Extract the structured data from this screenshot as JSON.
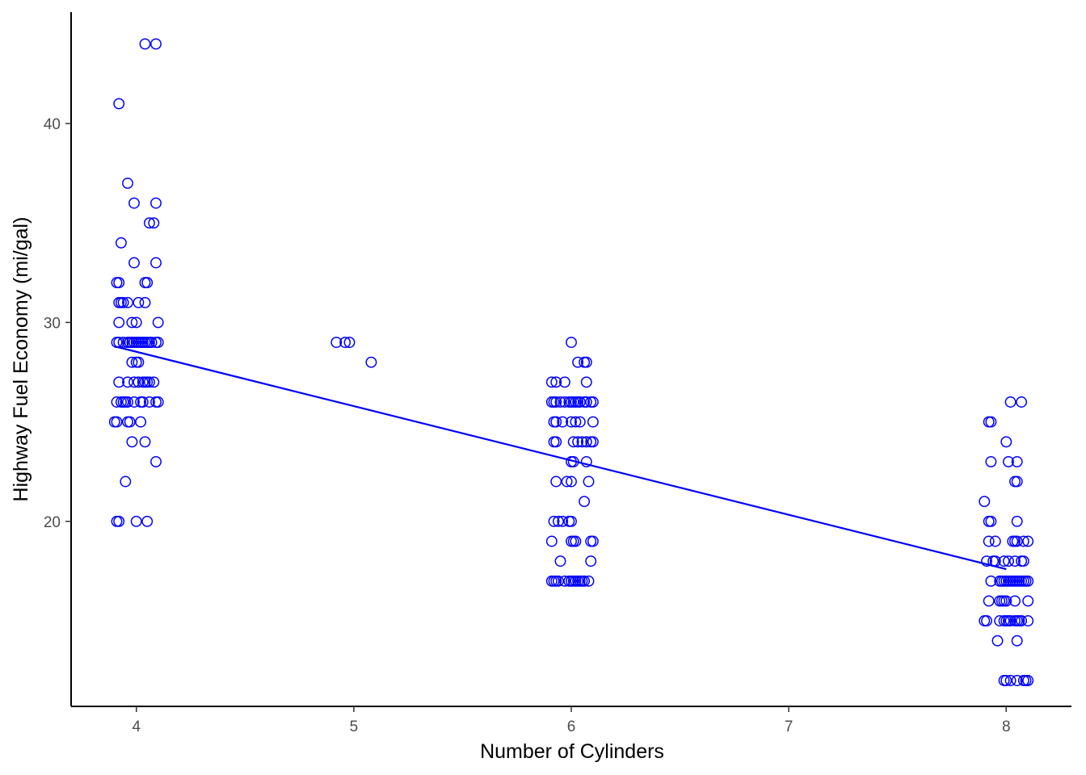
{
  "chart_data": {
    "type": "scatter",
    "xlabel": "Number of Cylinders",
    "ylabel": "Highway Fuel Economy (mi/gal)",
    "xlim": [
      3.7,
      8.3
    ],
    "ylim": [
      10.7,
      45.6
    ],
    "x_ticks": [
      4,
      5,
      6,
      7,
      8
    ],
    "y_ticks": [
      20,
      30,
      40
    ],
    "grid": false,
    "point_color": "#0000FF",
    "line_color": "#0000FF",
    "series": [
      {
        "points": [
          [
            4.09,
            44
          ],
          [
            4.04,
            44
          ],
          [
            3.92,
            41
          ],
          [
            3.96,
            37
          ],
          [
            3.99,
            36
          ],
          [
            4.09,
            36
          ],
          [
            4.06,
            35
          ],
          [
            4.08,
            35
          ],
          [
            3.93,
            34
          ],
          [
            3.99,
            33
          ],
          [
            4.09,
            33
          ],
          [
            3.91,
            32
          ],
          [
            3.92,
            32
          ],
          [
            4.04,
            32
          ],
          [
            4.05,
            32
          ],
          [
            3.92,
            31
          ],
          [
            3.93,
            31
          ],
          [
            3.94,
            31
          ],
          [
            3.96,
            31
          ],
          [
            4.01,
            31
          ],
          [
            4.04,
            31
          ],
          [
            3.92,
            30
          ],
          [
            3.98,
            30
          ],
          [
            4.0,
            30
          ],
          [
            4.1,
            30
          ],
          [
            3.91,
            29
          ],
          [
            3.92,
            29
          ],
          [
            3.94,
            29
          ],
          [
            3.96,
            29
          ],
          [
            3.97,
            29
          ],
          [
            3.98,
            29
          ],
          [
            3.99,
            29
          ],
          [
            4.0,
            29
          ],
          [
            4.01,
            29
          ],
          [
            4.02,
            29
          ],
          [
            4.03,
            29
          ],
          [
            4.04,
            29
          ],
          [
            4.05,
            29
          ],
          [
            4.06,
            29
          ],
          [
            4.07,
            29
          ],
          [
            4.09,
            29
          ],
          [
            4.1,
            29
          ],
          [
            3.98,
            28
          ],
          [
            4.0,
            28
          ],
          [
            4.01,
            28
          ],
          [
            3.92,
            27
          ],
          [
            3.96,
            27
          ],
          [
            3.99,
            27
          ],
          [
            4.01,
            27
          ],
          [
            4.03,
            27
          ],
          [
            4.04,
            27
          ],
          [
            4.05,
            27
          ],
          [
            4.06,
            27
          ],
          [
            4.08,
            27
          ],
          [
            3.91,
            26
          ],
          [
            3.93,
            26
          ],
          [
            3.94,
            26
          ],
          [
            3.95,
            26
          ],
          [
            3.96,
            26
          ],
          [
            3.99,
            26
          ],
          [
            4.02,
            26
          ],
          [
            4.03,
            26
          ],
          [
            4.06,
            26
          ],
          [
            4.09,
            26
          ],
          [
            4.1,
            26
          ],
          [
            3.9,
            25
          ],
          [
            3.91,
            25
          ],
          [
            3.96,
            25
          ],
          [
            3.97,
            25
          ],
          [
            4.02,
            25
          ],
          [
            3.98,
            24
          ],
          [
            4.04,
            24
          ],
          [
            4.09,
            23
          ],
          [
            3.95,
            22
          ],
          [
            3.91,
            20
          ],
          [
            3.92,
            20
          ],
          [
            4.0,
            20
          ],
          [
            4.05,
            20
          ],
          [
            4.92,
            29
          ],
          [
            4.96,
            29
          ],
          [
            4.98,
            29
          ],
          [
            5.08,
            28
          ],
          [
            6.0,
            29
          ],
          [
            6.03,
            28
          ],
          [
            6.06,
            28
          ],
          [
            6.07,
            28
          ],
          [
            5.91,
            27
          ],
          [
            5.93,
            27
          ],
          [
            5.97,
            27
          ],
          [
            6.07,
            27
          ],
          [
            5.91,
            26
          ],
          [
            5.92,
            26
          ],
          [
            5.93,
            26
          ],
          [
            5.95,
            26
          ],
          [
            5.97,
            26
          ],
          [
            5.99,
            26
          ],
          [
            6.0,
            26
          ],
          [
            6.01,
            26
          ],
          [
            6.02,
            26
          ],
          [
            6.03,
            26
          ],
          [
            6.04,
            26
          ],
          [
            6.06,
            26
          ],
          [
            6.07,
            26
          ],
          [
            6.09,
            26
          ],
          [
            6.1,
            26
          ],
          [
            5.92,
            25
          ],
          [
            5.93,
            25
          ],
          [
            5.96,
            25
          ],
          [
            6.0,
            25
          ],
          [
            6.02,
            25
          ],
          [
            6.04,
            25
          ],
          [
            6.1,
            25
          ],
          [
            5.92,
            24
          ],
          [
            5.93,
            24
          ],
          [
            6.01,
            24
          ],
          [
            6.03,
            24
          ],
          [
            6.05,
            24
          ],
          [
            6.07,
            24
          ],
          [
            6.09,
            24
          ],
          [
            6.1,
            24
          ],
          [
            6.0,
            23
          ],
          [
            6.01,
            23
          ],
          [
            6.07,
            23
          ],
          [
            5.93,
            22
          ],
          [
            5.98,
            22
          ],
          [
            6.0,
            22
          ],
          [
            6.08,
            22
          ],
          [
            6.06,
            21
          ],
          [
            5.92,
            20
          ],
          [
            5.94,
            20
          ],
          [
            5.96,
            20
          ],
          [
            5.99,
            20
          ],
          [
            6.0,
            20
          ],
          [
            5.91,
            19
          ],
          [
            6.0,
            19
          ],
          [
            6.01,
            19
          ],
          [
            6.02,
            19
          ],
          [
            6.09,
            19
          ],
          [
            6.1,
            19
          ],
          [
            5.95,
            18
          ],
          [
            6.09,
            18
          ],
          [
            5.91,
            17
          ],
          [
            5.92,
            17
          ],
          [
            5.93,
            17
          ],
          [
            5.94,
            17
          ],
          [
            5.97,
            17
          ],
          [
            5.99,
            17
          ],
          [
            6.0,
            17
          ],
          [
            6.01,
            17
          ],
          [
            6.02,
            17
          ],
          [
            6.03,
            17
          ],
          [
            6.04,
            17
          ],
          [
            6.05,
            17
          ],
          [
            6.06,
            17
          ],
          [
            6.08,
            17
          ],
          [
            8.02,
            26
          ],
          [
            8.07,
            26
          ],
          [
            7.92,
            25
          ],
          [
            7.93,
            25
          ],
          [
            8.0,
            24
          ],
          [
            7.93,
            23
          ],
          [
            8.01,
            23
          ],
          [
            8.05,
            23
          ],
          [
            8.04,
            22
          ],
          [
            8.05,
            22
          ],
          [
            7.9,
            21
          ],
          [
            7.92,
            20
          ],
          [
            7.93,
            20
          ],
          [
            8.05,
            20
          ],
          [
            7.92,
            19
          ],
          [
            7.95,
            19
          ],
          [
            8.03,
            19
          ],
          [
            8.04,
            19
          ],
          [
            8.05,
            19
          ],
          [
            8.08,
            19
          ],
          [
            8.1,
            19
          ],
          [
            7.91,
            18
          ],
          [
            7.94,
            18
          ],
          [
            7.95,
            18
          ],
          [
            7.99,
            18
          ],
          [
            8.01,
            18
          ],
          [
            8.04,
            18
          ],
          [
            8.07,
            18
          ],
          [
            8.08,
            18
          ],
          [
            7.93,
            17
          ],
          [
            7.97,
            17
          ],
          [
            7.98,
            17
          ],
          [
            7.99,
            17
          ],
          [
            8.0,
            17
          ],
          [
            8.01,
            17
          ],
          [
            8.02,
            17
          ],
          [
            8.03,
            17
          ],
          [
            8.04,
            17
          ],
          [
            8.05,
            17
          ],
          [
            8.06,
            17
          ],
          [
            8.07,
            17
          ],
          [
            8.08,
            17
          ],
          [
            8.09,
            17
          ],
          [
            8.1,
            17
          ],
          [
            7.92,
            16
          ],
          [
            7.97,
            16
          ],
          [
            7.98,
            16
          ],
          [
            7.99,
            16
          ],
          [
            8.0,
            16
          ],
          [
            8.04,
            16
          ],
          [
            8.1,
            16
          ],
          [
            7.9,
            15
          ],
          [
            7.91,
            15
          ],
          [
            7.97,
            15
          ],
          [
            7.99,
            15
          ],
          [
            8.0,
            15
          ],
          [
            8.01,
            15
          ],
          [
            8.02,
            15
          ],
          [
            8.04,
            15
          ],
          [
            8.05,
            15
          ],
          [
            8.06,
            15
          ],
          [
            8.07,
            15
          ],
          [
            8.1,
            15
          ],
          [
            7.96,
            14
          ],
          [
            8.05,
            14
          ],
          [
            7.99,
            12
          ],
          [
            8.0,
            12
          ],
          [
            8.02,
            12
          ],
          [
            8.05,
            12
          ],
          [
            8.08,
            12
          ],
          [
            8.09,
            12
          ],
          [
            8.1,
            12
          ]
        ]
      }
    ],
    "trend_line": {
      "x": [
        3.9,
        8.0
      ],
      "y": [
        28.8,
        17.6
      ]
    }
  }
}
